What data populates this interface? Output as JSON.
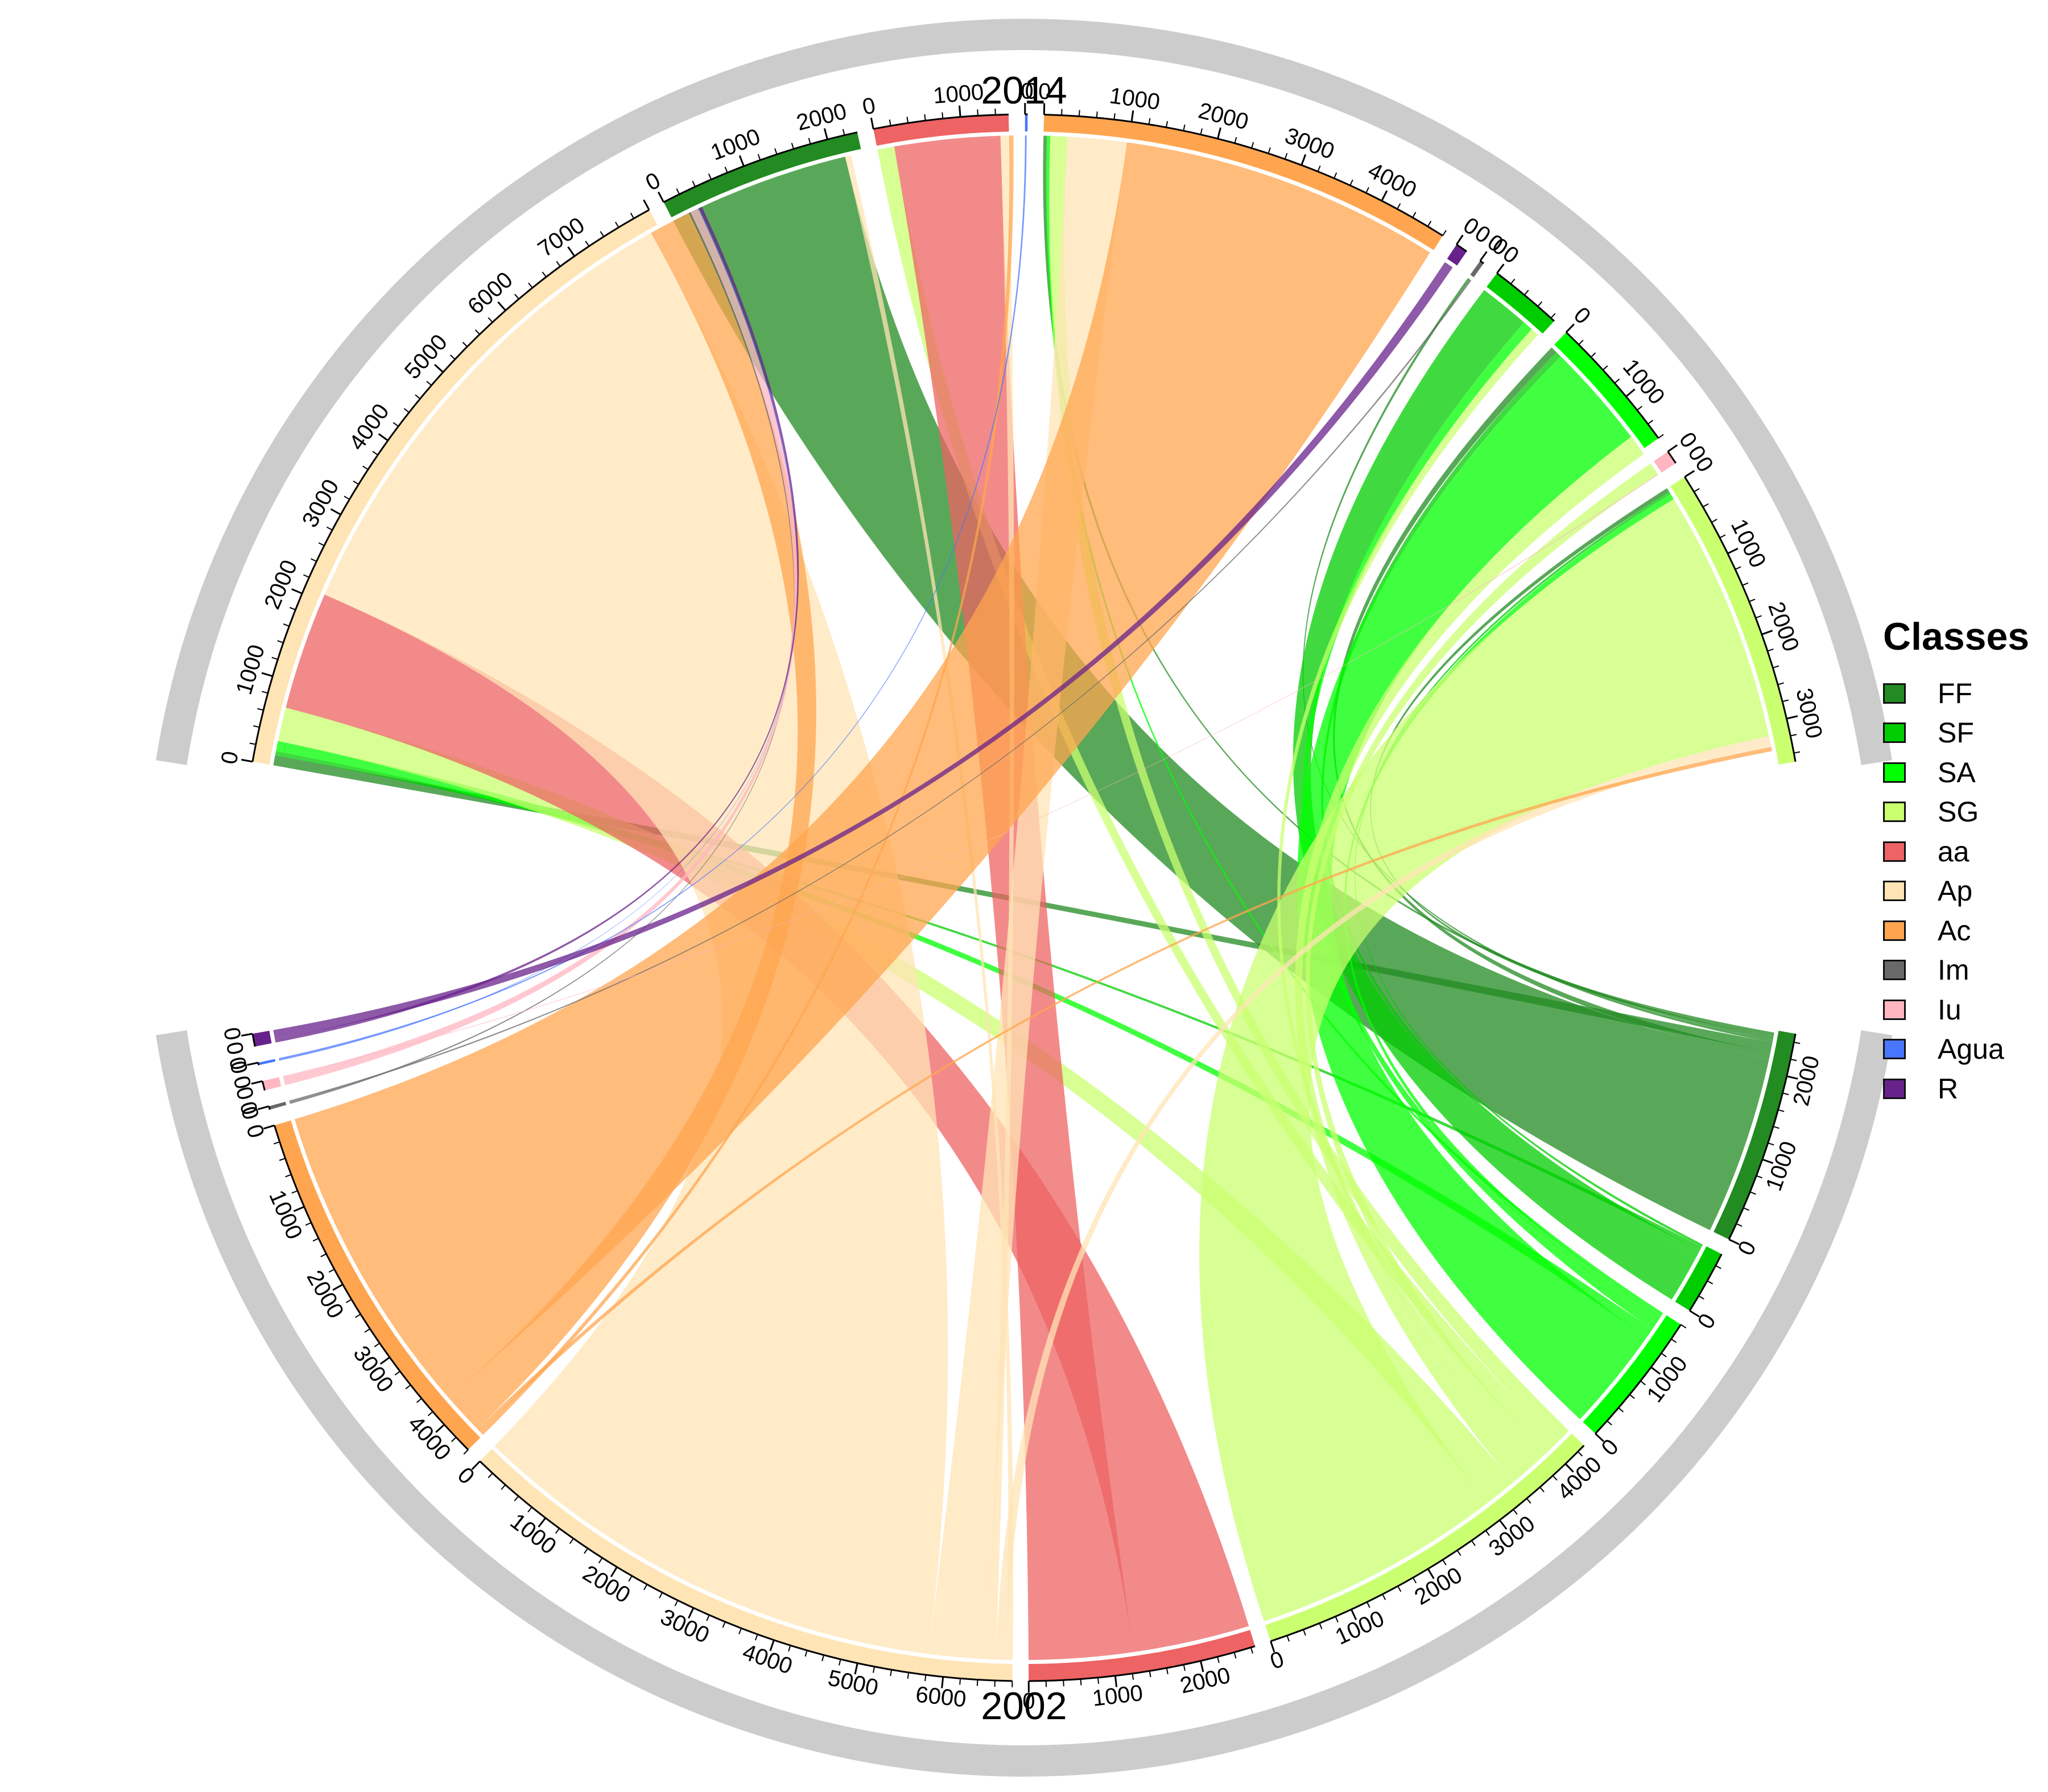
{
  "diagram": {
    "type": "chord",
    "group_labels": {
      "top": "2014",
      "bottom": "2002"
    }
  },
  "legend": {
    "title": "Classes",
    "items": [
      {
        "label": "FF",
        "color": "#228B22"
      },
      {
        "label": "SF",
        "color": "#00CD00"
      },
      {
        "label": "SA",
        "color": "#00FF00"
      },
      {
        "label": "SG",
        "color": "#CAFF70"
      },
      {
        "label": "aa",
        "color": "#EE6363"
      },
      {
        "label": "Ap",
        "color": "#FFE4B5"
      },
      {
        "label": "Ac",
        "color": "#FFA54F"
      },
      {
        "label": "Im",
        "color": "#696969"
      },
      {
        "label": "Iu",
        "color": "#FFB6C1"
      },
      {
        "label": "Agua",
        "color": "#4876FF"
      },
      {
        "label": "R",
        "color": "#68228B"
      }
    ]
  },
  "sectors": [
    {
      "id": "2002_FF",
      "class": "FF",
      "group": "2002",
      "size": 2500,
      "ticks": [
        0,
        1000,
        2000
      ]
    },
    {
      "id": "2002_SF",
      "class": "SF",
      "group": "2002",
      "size": 750,
      "ticks": [
        0
      ]
    },
    {
      "id": "2002_SA",
      "class": "SA",
      "group": "2002",
      "size": 1600,
      "ticks": [
        0,
        1000
      ]
    },
    {
      "id": "2002_SG",
      "class": "SG",
      "group": "2002",
      "size": 4300,
      "ticks": [
        0,
        1000,
        2000,
        3000,
        4000
      ]
    },
    {
      "id": "2002_aa",
      "class": "aa",
      "group": "2002",
      "size": 2650,
      "ticks": [
        0,
        1000,
        2000
      ]
    },
    {
      "id": "2002_Ap",
      "class": "Ap",
      "group": "2002",
      "size": 6800,
      "ticks": [
        0,
        1000,
        2000,
        3000,
        4000,
        5000,
        6000
      ]
    },
    {
      "id": "2002_Ac",
      "class": "Ac",
      "group": "2002",
      "size": 4400,
      "ticks": [
        0,
        1000,
        2000,
        3000,
        4000
      ]
    },
    {
      "id": "2002_Im",
      "class": "Im",
      "group": "2002",
      "size": 40,
      "ticks": [
        0,
        0
      ]
    },
    {
      "id": "2002_Iu",
      "class": "Iu",
      "group": "2002",
      "size": 110,
      "ticks": [
        0,
        0
      ]
    },
    {
      "id": "2002_Agua",
      "class": "Agua",
      "group": "2002",
      "size": 30,
      "ticks": [
        0,
        0
      ]
    },
    {
      "id": "2002_R",
      "class": "R",
      "group": "2002",
      "size": 150,
      "ticks": [
        0,
        0
      ]
    },
    {
      "id": "2014_SG",
      "class": "SG",
      "group": "2014",
      "size": 3500,
      "ticks": [
        0,
        1000,
        2000,
        3000
      ]
    },
    {
      "id": "2014_Iu",
      "class": "Iu",
      "group": "2014",
      "size": 160,
      "ticks": [
        0,
        0
      ]
    },
    {
      "id": "2014_SA",
      "class": "SA",
      "group": "2014",
      "size": 1600,
      "ticks": [
        0,
        1000
      ]
    },
    {
      "id": "2014_SF",
      "class": "SF",
      "group": "2014",
      "size": 850,
      "ticks": [
        0
      ]
    },
    {
      "id": "2014_Im",
      "class": "Im",
      "group": "2014",
      "size": 50,
      "ticks": [
        0,
        0
      ]
    },
    {
      "id": "2014_R",
      "class": "R",
      "group": "2014",
      "size": 140,
      "ticks": [
        0,
        0
      ]
    },
    {
      "id": "2014_Ac",
      "class": "Ac",
      "group": "2014",
      "size": 4800,
      "ticks": [
        0,
        1000,
        2000,
        3000,
        4000
      ]
    },
    {
      "id": "2014_Agua",
      "class": "Agua",
      "group": "2014",
      "size": 30,
      "ticks": [
        0,
        0
      ]
    },
    {
      "id": "2014_aa",
      "class": "aa",
      "group": "2014",
      "size": 1550,
      "ticks": [
        0,
        1000
      ]
    },
    {
      "id": "2014_FF",
      "class": "FF",
      "group": "2014",
      "size": 2350,
      "ticks": [
        0,
        1000,
        2000
      ]
    },
    {
      "id": "2014_Ap",
      "class": "Ap",
      "group": "2014",
      "size": 8000,
      "ticks": [
        0,
        1000,
        2000,
        3000,
        4000,
        5000,
        6000,
        7000
      ]
    }
  ],
  "flows": [
    {
      "from": "FF",
      "to": "FF",
      "value": 2150
    },
    {
      "from": "FF",
      "to": "SA",
      "value": 80
    },
    {
      "from": "FF",
      "to": "Ap",
      "value": 120
    },
    {
      "from": "FF",
      "to": "Im",
      "value": 30
    },
    {
      "from": "FF",
      "to": "Ac",
      "value": 40
    },
    {
      "from": "FF",
      "to": "SG",
      "value": 50
    },
    {
      "from": "SF",
      "to": "SF",
      "value": 600
    },
    {
      "from": "SF",
      "to": "SA",
      "value": 70
    },
    {
      "from": "SF",
      "to": "Ap",
      "value": 50
    },
    {
      "from": "SF",
      "to": "SG",
      "value": 30
    },
    {
      "from": "SA",
      "to": "SA",
      "value": 1250
    },
    {
      "from": "SA",
      "to": "Ap",
      "value": 120
    },
    {
      "from": "SA",
      "to": "SF",
      "value": 120
    },
    {
      "from": "SA",
      "to": "SG",
      "value": 70
    },
    {
      "from": "SA",
      "to": "Ac",
      "value": 40
    },
    {
      "from": "SG",
      "to": "SG",
      "value": 3000
    },
    {
      "from": "SG",
      "to": "Ap",
      "value": 400
    },
    {
      "from": "SG",
      "to": "SA",
      "value": 250
    },
    {
      "from": "SG",
      "to": "SF",
      "value": 100
    },
    {
      "from": "SG",
      "to": "Iu",
      "value": 150
    },
    {
      "from": "SG",
      "to": "aa",
      "value": 200
    },
    {
      "from": "SG",
      "to": "Ac",
      "value": 200
    },
    {
      "from": "aa",
      "to": "aa",
      "value": 1250
    },
    {
      "from": "aa",
      "to": "Ap",
      "value": 1400
    },
    {
      "from": "Ap",
      "to": "Ap",
      "value": 5800
    },
    {
      "from": "Ap",
      "to": "Ac",
      "value": 700
    },
    {
      "from": "Ap",
      "to": "aa",
      "value": 100
    },
    {
      "from": "Ap",
      "to": "SG",
      "value": 130
    },
    {
      "from": "Ap",
      "to": "FF",
      "value": 70
    },
    {
      "from": "Ac",
      "to": "Ac",
      "value": 3800
    },
    {
      "from": "Ac",
      "to": "Ap",
      "value": 500
    },
    {
      "from": "Ac",
      "to": "SG",
      "value": 50
    },
    {
      "from": "Ac",
      "to": "aa",
      "value": 50
    },
    {
      "from": "Im",
      "to": "Im",
      "value": 20
    },
    {
      "from": "Im",
      "to": "Ap",
      "value": 20
    },
    {
      "from": "Iu",
      "to": "Iu",
      "value": 10
    },
    {
      "from": "Iu",
      "to": "Ap",
      "value": 100
    },
    {
      "from": "Agua",
      "to": "Agua",
      "value": 20
    },
    {
      "from": "Agua",
      "to": "Ap",
      "value": 10
    },
    {
      "from": "R",
      "to": "R",
      "value": 110
    },
    {
      "from": "R",
      "to": "Ap",
      "value": 40
    }
  ]
}
